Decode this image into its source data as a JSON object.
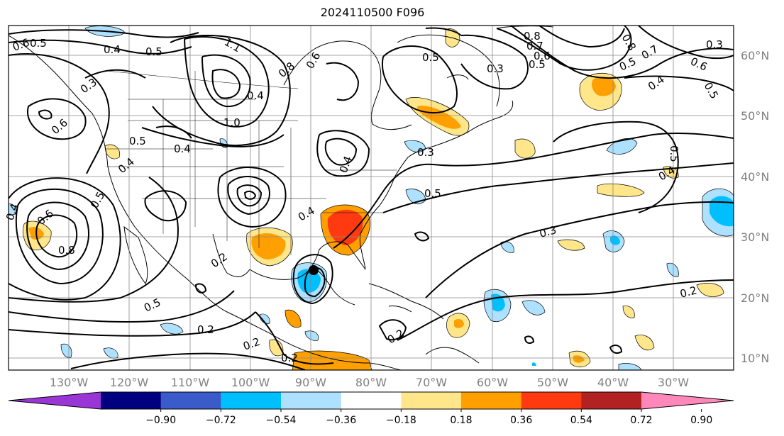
{
  "title": "2024110500 F096",
  "lon_labels": [
    "130°W",
    "120°W",
    "110°W",
    "100°W",
    "90°W",
    "80°W",
    "70°W",
    "60°W",
    "50°W",
    "40°W",
    "30°W"
  ],
  "lat_labels": [
    "10°N",
    "20°N",
    "30°N",
    "40°N",
    "50°N",
    "60°N"
  ],
  "colorbar": {
    "ticks": [
      "−0.90",
      "−0.72",
      "−0.54",
      "−0.36",
      "−0.18",
      "0.18",
      "0.36",
      "0.54",
      "0.72",
      "0.90"
    ],
    "colors": [
      "#9a35d6",
      "#000080",
      "#3a5bc9",
      "#00bfff",
      "#aee0ff",
      "#ffffff",
      "#ffe68a",
      "#ffa000",
      "#ff3a10",
      "#b22222",
      "#ff88bb"
    ]
  },
  "contour_labels": [
    "0.6",
    "0.5",
    "0.4",
    "0.5",
    "1.1",
    "0.3",
    "0.6",
    "0.5",
    "0.4",
    "1.0",
    "0.4",
    "0.8",
    "0.6",
    "0.5",
    "0.3",
    "0.8",
    "0.7",
    "0.6",
    "0.5",
    "0.4",
    "0.8",
    "0.5",
    "0.7",
    "0.6",
    "0.5",
    "0.3",
    "0.4",
    "0.8",
    "0.5",
    "0.4",
    "0.3",
    "0.2",
    "0.2",
    "0.2",
    "0.5",
    "0.3",
    "0.2",
    "0.2",
    "0.4",
    "0.6",
    "0.5",
    "0.4",
    "0.5",
    "0.2",
    "0.4"
  ]
}
